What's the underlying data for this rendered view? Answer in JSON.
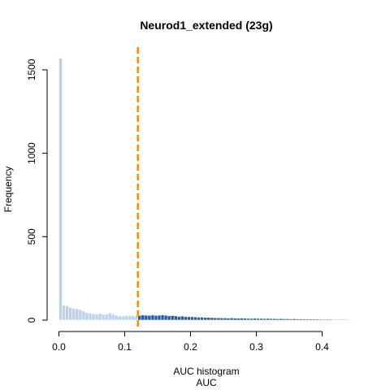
{
  "chart_data": {
    "type": "bar",
    "title": "Neurod1_extended (23g)",
    "xlabel_lines": [
      "AUC histogram",
      "AUC"
    ],
    "ylabel": "Frequency",
    "xlim": [
      0,
      0.45
    ],
    "ylim": [
      0,
      1600
    ],
    "x_ticks": [
      0.0,
      0.1,
      0.2,
      0.3,
      0.4
    ],
    "x_tick_labels": [
      "0.0",
      "0.1",
      "0.2",
      "0.3",
      "0.4"
    ],
    "y_ticks": [
      0,
      500,
      1000,
      1500
    ],
    "y_tick_labels": [
      "0",
      "500",
      "1000",
      "1500"
    ],
    "bin_width": 0.005,
    "threshold": 0.12,
    "colors": {
      "below_threshold": "#b9d3ee",
      "above_threshold": "#1f5ba8",
      "threshold_line": "#ff8c00",
      "bar_border": "#ffffff",
      "axis": "#000000"
    },
    "bins_start": 0,
    "values": [
      1570,
      88,
      85,
      75,
      70,
      68,
      62,
      55,
      45,
      40,
      38,
      36,
      40,
      34,
      35,
      42,
      35,
      28,
      25,
      25,
      27,
      28,
      26,
      27,
      28,
      30,
      29,
      28,
      30,
      28,
      29,
      31,
      29,
      26,
      27,
      25,
      22,
      24,
      21,
      20,
      20,
      19,
      17,
      18,
      16,
      16,
      15,
      14,
      14,
      13,
      13,
      12,
      13,
      12,
      11,
      12,
      11,
      10,
      10,
      11,
      10,
      10,
      9,
      10,
      9,
      9,
      8,
      9,
      8,
      8,
      7,
      8,
      7,
      7,
      7,
      6,
      6,
      6,
      6,
      5,
      5,
      5,
      5,
      4,
      4,
      4,
      4,
      4,
      3,
      3
    ]
  }
}
